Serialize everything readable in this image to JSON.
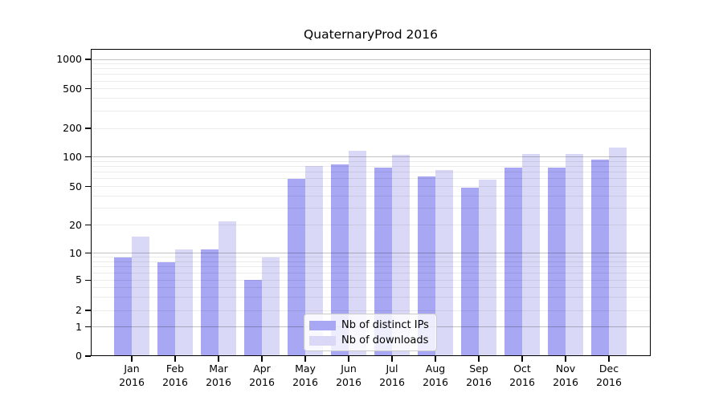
{
  "title": "QuaternaryProd 2016",
  "chart_data": {
    "type": "bar",
    "title": "QuaternaryProd 2016",
    "categories": [
      "Jan",
      "Feb",
      "Mar",
      "Apr",
      "May",
      "Jun",
      "Jul",
      "Aug",
      "Sep",
      "Oct",
      "Nov",
      "Dec"
    ],
    "category_year": "2016",
    "series": [
      {
        "name": "Nb of distinct IPs",
        "color": "#a7a7f3",
        "values": [
          9,
          8,
          11,
          5,
          60,
          84,
          78,
          63,
          49,
          78,
          78,
          94
        ]
      },
      {
        "name": "Nb of downloads",
        "color": "#d9d9f7",
        "values": [
          15,
          11,
          22,
          9,
          81,
          116,
          106,
          74,
          59,
          108,
          107,
          125
        ]
      }
    ],
    "xlabel": "",
    "ylabel": "",
    "y_ticks": [
      0,
      1,
      2,
      5,
      10,
      20,
      50,
      100,
      200,
      500,
      1000
    ],
    "ylim": [
      0,
      1300
    ],
    "scale": "log-with-zero-baseline",
    "grid": "major-and-minor-horizontal",
    "legend_position": "inside-bottom-center"
  },
  "colors": {
    "bar_distinct_ips": "#a7a7f3",
    "bar_downloads": "#d9d9f7",
    "major_grid": "#c3c3c3",
    "minor_grid": "#ececec",
    "axis": "#000000",
    "legend_border": "#cbcbcb",
    "background": "#ffffff"
  }
}
